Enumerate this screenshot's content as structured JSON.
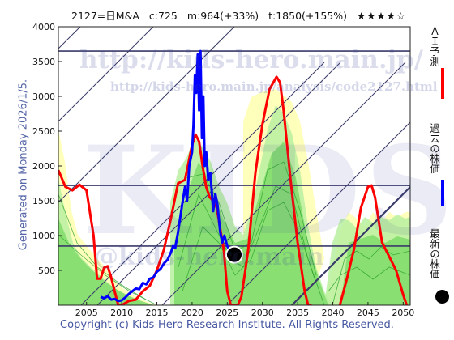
{
  "header": {
    "code_name": "2127=日M&A",
    "current": "c:725",
    "mid": "m:964(+33%)",
    "target": "t:1850(+155%)",
    "rating": "★★★★☆"
  },
  "side_label": "Generated on Monday 2026/1/5.",
  "footer": "Copyright (c) Kids-Hero Research Institute. All Rights Reserved.",
  "watermarks": {
    "url": "http://kids-hero.main.jp/",
    "analysis_url": "http://kids-hero.main.jp/analysis/code2127.html",
    "logo": "KIDS",
    "bottom": "@kids-hero.main"
  },
  "legend": [
    {
      "label": "ＡＩ予測",
      "color": "#ff0000",
      "marker": "line"
    },
    {
      "label": "過去の株価",
      "color": "#0000ff",
      "marker": "line"
    },
    {
      "label": "最新の株価",
      "color": "#000000",
      "marker": "dot"
    }
  ],
  "chart_data": {
    "type": "line",
    "xlim": [
      2001,
      2051
    ],
    "ylim": [
      0,
      4000
    ],
    "x_ticks": [
      2005,
      2010,
      2015,
      2020,
      2025,
      2030,
      2035,
      2040,
      2045,
      2050
    ],
    "y_ticks": [
      500,
      1000,
      1500,
      2000,
      2500,
      3000,
      3500,
      4000
    ],
    "hlines": [
      850,
      1720,
      3650
    ],
    "colors": {
      "ai": "#ff0000",
      "past": "#0000ff",
      "latest": "#000000",
      "grid": "#3a3a6a"
    },
    "series": [
      {
        "name": "ＡＩ予測",
        "x": [
          2001,
          2002,
          2003,
          2004,
          2005,
          2006,
          2006.5,
          2007,
          2007.5,
          2008,
          2008.5,
          2009,
          2009.5,
          2010,
          2011,
          2012,
          2013,
          2014,
          2015,
          2016,
          2017,
          2018,
          2019,
          2020,
          2020.5,
          2021,
          2021.5,
          2022,
          2022.5,
          2023,
          2023.5,
          2024,
          2024.5,
          2025,
          2025.5,
          2026,
          2026.5,
          2027,
          2027.5,
          2028,
          2029,
          2030,
          2031,
          2032,
          2032.5,
          2033,
          2034,
          2035,
          2036,
          2036.5,
          2037
        ],
        "values": [
          1940,
          1700,
          1650,
          1730,
          1650,
          1000,
          380,
          380,
          540,
          560,
          400,
          200,
          0,
          0,
          60,
          80,
          200,
          280,
          500,
          800,
          1250,
          1750,
          1800,
          2300,
          2450,
          2350,
          2000,
          1700,
          1550,
          1500,
          1400,
          1100,
          800,
          200,
          0,
          0,
          0,
          120,
          450,
          820,
          1900,
          2600,
          3100,
          3280,
          3200,
          2800,
          1800,
          900,
          200,
          0,
          0
        ]
      },
      {
        "name": "ＡＩ予測",
        "x": [
          2041,
          2042,
          2043,
          2044,
          2045,
          2045.5,
          2046,
          2047,
          2048,
          2049,
          2050,
          2050.5
        ],
        "values": [
          0,
          380,
          800,
          1400,
          1700,
          1720,
          1550,
          900,
          700,
          500,
          150,
          0
        ]
      },
      {
        "name": "過去の株価",
        "x": [
          2007,
          2007.5,
          2008,
          2008.5,
          2009,
          2009.5,
          2010,
          2010.5,
          2011,
          2011.5,
          2012,
          2012.5,
          2013,
          2013.5,
          2014,
          2014.5,
          2015,
          2015.5,
          2016,
          2016.5,
          2017,
          2017.3,
          2017.6,
          2018,
          2018.3,
          2018.6,
          2019,
          2019.3,
          2019.6,
          2020,
          2020.2,
          2020.4,
          2020.6,
          2020.8,
          2021,
          2021.2,
          2021.4,
          2021.6,
          2021.8,
          2022,
          2022.3,
          2022.6,
          2023,
          2023.3,
          2023.6,
          2024,
          2024.3,
          2024.6,
          2025,
          2025.3,
          2025.5
        ],
        "values": [
          120,
          100,
          130,
          80,
          90,
          60,
          70,
          110,
          160,
          200,
          240,
          230,
          320,
          300,
          380,
          400,
          480,
          520,
          600,
          650,
          760,
          850,
          820,
          1050,
          1250,
          1450,
          1700,
          1500,
          2000,
          2200,
          2600,
          3300,
          3050,
          3600,
          2800,
          3650,
          2400,
          3000,
          2000,
          2200,
          1800,
          1900,
          1350,
          1600,
          1450,
          1050,
          900,
          1000,
          850,
          800,
          725
        ]
      }
    ],
    "latest_point": {
      "x": 2026,
      "y": 725
    }
  }
}
